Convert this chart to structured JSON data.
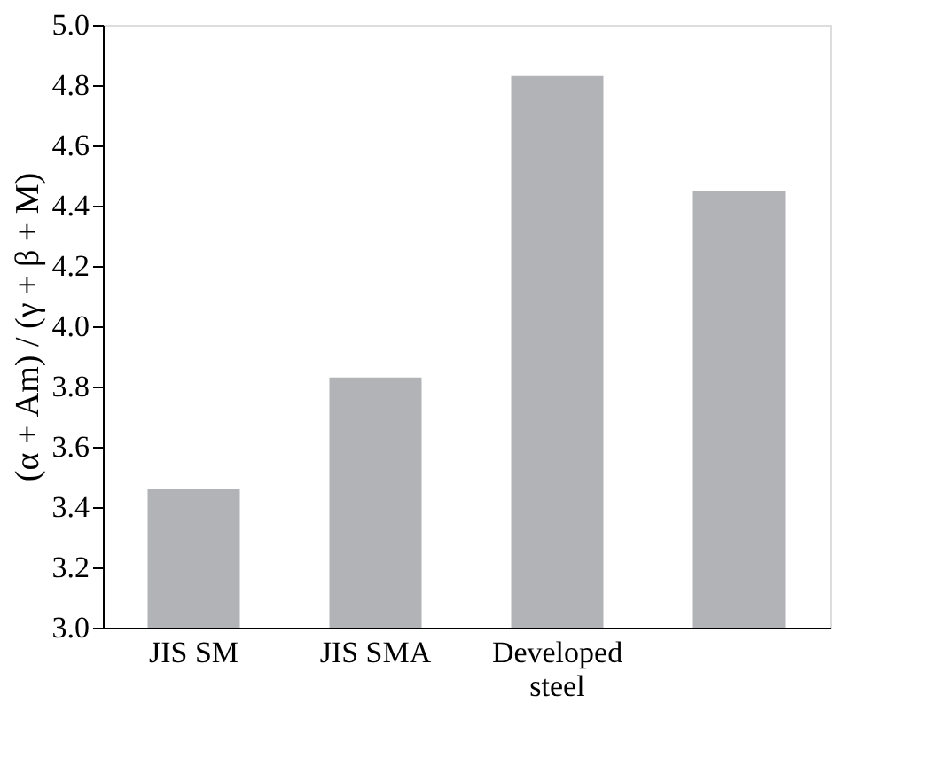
{
  "chart_data": {
    "type": "bar",
    "ylabel": "(α + Am) / (γ + β + M)",
    "categories": [
      "JIS SM",
      "JIS SMA",
      "Developed steel",
      null
    ],
    "values": [
      3.46,
      3.83,
      4.83,
      4.45
    ],
    "color": "#b2b3b7",
    "ylim": [
      3.0,
      5.0
    ],
    "yticks": [
      {
        "value": 3.0,
        "label": "3.0"
      },
      {
        "value": 3.2,
        "label": "3.2"
      },
      {
        "value": 3.4,
        "label": "3.4"
      },
      {
        "value": 3.6,
        "label": "3.6"
      },
      {
        "value": 3.8,
        "label": "3.8"
      },
      {
        "value": 4.0,
        "label": "4.0"
      },
      {
        "value": 4.2,
        "label": "4.2"
      },
      {
        "value": 4.4,
        "label": "4.4"
      },
      {
        "value": 4.6,
        "label": "4.6"
      },
      {
        "value": 4.8,
        "label": "4.8"
      },
      {
        "value": 5.0,
        "label": "5.0"
      }
    ],
    "grid": false
  }
}
